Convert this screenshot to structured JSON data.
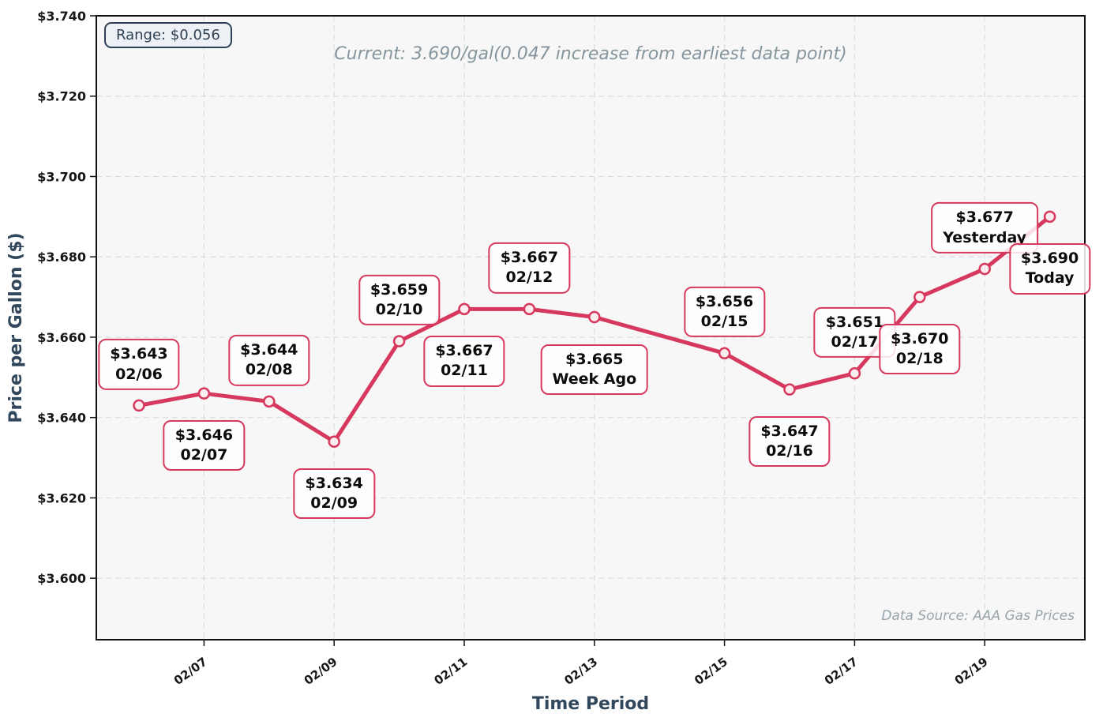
{
  "chart_data": {
    "type": "line",
    "title": "Current: 3.690/gal(0.047 increase from earliest data point)",
    "range_badge": "Range: $0.056",
    "source_note": "Data Source: AAA Gas Prices",
    "xlabel": "Time Period",
    "ylabel": "Price per Gallon ($)",
    "grid": "dashed",
    "legend": "none",
    "ylim": [
      3.5847,
      3.74
    ],
    "xlim_days": [
      5.3447,
      20.5388
    ],
    "y_ticks": [
      {
        "value": 3.74,
        "label": "$3.740"
      },
      {
        "value": 3.72,
        "label": "$3.720"
      },
      {
        "value": 3.7,
        "label": "$3.700"
      },
      {
        "value": 3.68,
        "label": "$3.680"
      },
      {
        "value": 3.66,
        "label": "$3.660"
      },
      {
        "value": 3.64,
        "label": "$3.640"
      },
      {
        "value": 3.62,
        "label": "$3.620"
      },
      {
        "value": 3.6,
        "label": "$3.600"
      }
    ],
    "x_ticks": [
      {
        "day": 7,
        "label": "02/07"
      },
      {
        "day": 9,
        "label": "02/09"
      },
      {
        "day": 11,
        "label": "02/11"
      },
      {
        "day": 13,
        "label": "02/13"
      },
      {
        "day": 15,
        "label": "02/15"
      },
      {
        "day": 17,
        "label": "02/17"
      },
      {
        "day": 19,
        "label": "02/19"
      }
    ],
    "series": [
      {
        "name": "price",
        "points": [
          {
            "day": 6,
            "value": 3.643,
            "price_label": "$3.643",
            "date_label": "02/06",
            "label_pos": "above"
          },
          {
            "day": 7,
            "value": 3.646,
            "price_label": "$3.646",
            "date_label": "02/07",
            "label_pos": "below"
          },
          {
            "day": 8,
            "value": 3.644,
            "price_label": "$3.644",
            "date_label": "02/08",
            "label_pos": "above"
          },
          {
            "day": 9,
            "value": 3.634,
            "price_label": "$3.634",
            "date_label": "02/09",
            "label_pos": "below"
          },
          {
            "day": 10,
            "value": 3.659,
            "price_label": "$3.659",
            "date_label": "02/10",
            "label_pos": "above"
          },
          {
            "day": 11,
            "value": 3.667,
            "price_label": "$3.667",
            "date_label": "02/11",
            "label_pos": "below"
          },
          {
            "day": 12,
            "value": 3.667,
            "price_label": "$3.667",
            "date_label": "02/12",
            "label_pos": "above"
          },
          {
            "day": 13,
            "value": 3.665,
            "price_label": "$3.665",
            "date_label": "Week Ago",
            "label_pos": "below"
          },
          {
            "day": 15,
            "value": 3.656,
            "price_label": "$3.656",
            "date_label": "02/15",
            "label_pos": "above"
          },
          {
            "day": 16,
            "value": 3.647,
            "price_label": "$3.647",
            "date_label": "02/16",
            "label_pos": "below"
          },
          {
            "day": 17,
            "value": 3.651,
            "price_label": "$3.651",
            "date_label": "02/17",
            "label_pos": "above"
          },
          {
            "day": 18,
            "value": 3.67,
            "price_label": "$3.670",
            "date_label": "02/18",
            "label_pos": "below"
          },
          {
            "day": 19,
            "value": 3.677,
            "price_label": "$3.677",
            "date_label": "Yesterday",
            "label_pos": "above"
          },
          {
            "day": 20,
            "value": 3.69,
            "price_label": "$3.690",
            "date_label": "Today",
            "label_pos": "below"
          }
        ]
      }
    ],
    "colors": {
      "line": "#D6395D",
      "marker_fill": "#FBECEF",
      "label_box_border": "#D6395D",
      "axis_title": "#31475C",
      "title_text": "#85959E",
      "source_text": "#97A5AB",
      "badge_text": "#2E4053",
      "badge_bg": "#EDF1F5",
      "plot_bg": "#F7F7F7",
      "grid": "#DCDCDC",
      "spine": "#111111"
    }
  }
}
